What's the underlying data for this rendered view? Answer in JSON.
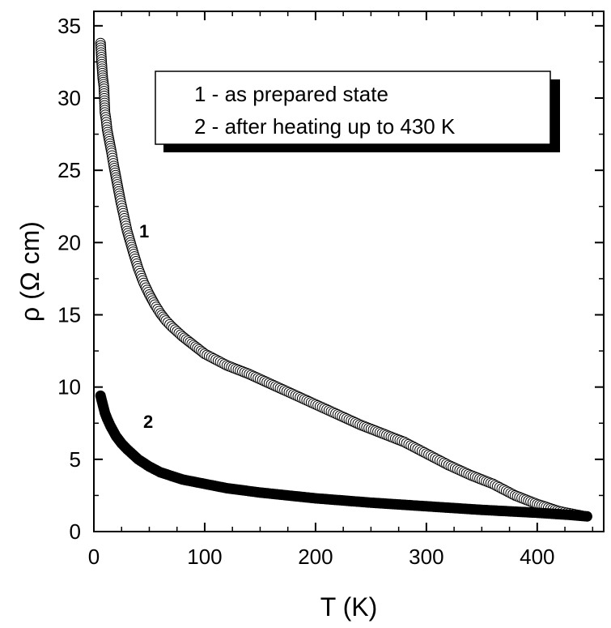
{
  "chart_data": {
    "type": "scatter",
    "xlabel": "T (K)",
    "ylabel": "ρ (Ω cm)",
    "xlim": [
      0,
      460
    ],
    "ylim": [
      0,
      36
    ],
    "x_ticks": [
      0,
      100,
      200,
      300,
      400
    ],
    "y_ticks": [
      0,
      5,
      10,
      15,
      20,
      25,
      30,
      35
    ],
    "x_tick_labels": [
      "0",
      "100",
      "200",
      "300",
      "400"
    ],
    "y_tick_labels": [
      "0",
      "5",
      "10",
      "15",
      "20",
      "25",
      "30",
      "35"
    ],
    "grid": false,
    "legend_position": "top-center",
    "legend_entries": [
      "1 - as prepared state",
      "2 - after heating up to 430 K"
    ],
    "series": [
      {
        "name": "1",
        "marker": "open-circle",
        "color": "#000000",
        "points": [
          [
            6,
            33.8
          ],
          [
            7,
            32.5
          ],
          [
            8,
            31.4
          ],
          [
            9,
            30.8
          ],
          [
            10,
            29.0
          ],
          [
            11,
            28.5
          ],
          [
            12,
            27.8
          ],
          [
            14,
            27.0
          ],
          [
            16,
            26.2
          ],
          [
            18,
            25.3
          ],
          [
            20,
            24.5
          ],
          [
            22,
            23.7
          ],
          [
            24,
            22.9
          ],
          [
            26,
            22.2
          ],
          [
            28,
            21.5
          ],
          [
            30,
            20.8
          ],
          [
            33,
            20.0
          ],
          [
            36,
            19.2
          ],
          [
            40,
            18.2
          ],
          [
            45,
            17.2
          ],
          [
            50,
            16.4
          ],
          [
            55,
            15.7
          ],
          [
            60,
            15.1
          ],
          [
            65,
            14.6
          ],
          [
            70,
            14.2
          ],
          [
            80,
            13.5
          ],
          [
            90,
            12.9
          ],
          [
            100,
            12.3
          ],
          [
            120,
            11.5
          ],
          [
            140,
            10.9
          ],
          [
            160,
            10.2
          ],
          [
            180,
            9.5
          ],
          [
            200,
            8.8
          ],
          [
            220,
            8.1
          ],
          [
            240,
            7.4
          ],
          [
            260,
            6.8
          ],
          [
            280,
            6.2
          ],
          [
            300,
            5.4
          ],
          [
            320,
            4.6
          ],
          [
            340,
            3.9
          ],
          [
            360,
            3.3
          ],
          [
            380,
            2.5
          ],
          [
            400,
            1.9
          ],
          [
            420,
            1.4
          ],
          [
            440,
            1.1
          ]
        ]
      },
      {
        "name": "2",
        "marker": "filled-circle",
        "color": "#000000",
        "points": [
          [
            6,
            9.4
          ],
          [
            8,
            8.8
          ],
          [
            10,
            8.2
          ],
          [
            12,
            7.8
          ],
          [
            15,
            7.3
          ],
          [
            20,
            6.6
          ],
          [
            25,
            6.1
          ],
          [
            30,
            5.7
          ],
          [
            40,
            5.0
          ],
          [
            50,
            4.5
          ],
          [
            60,
            4.1
          ],
          [
            80,
            3.6
          ],
          [
            100,
            3.3
          ],
          [
            120,
            3.0
          ],
          [
            150,
            2.7
          ],
          [
            200,
            2.3
          ],
          [
            250,
            2.0
          ],
          [
            300,
            1.75
          ],
          [
            350,
            1.5
          ],
          [
            400,
            1.3
          ],
          [
            430,
            1.15
          ],
          [
            445,
            1.05
          ]
        ]
      }
    ],
    "annotations": [
      {
        "text": "1",
        "x": 50,
        "y": 20.5
      },
      {
        "text": "2",
        "x": 55,
        "y": 7.5
      }
    ]
  }
}
